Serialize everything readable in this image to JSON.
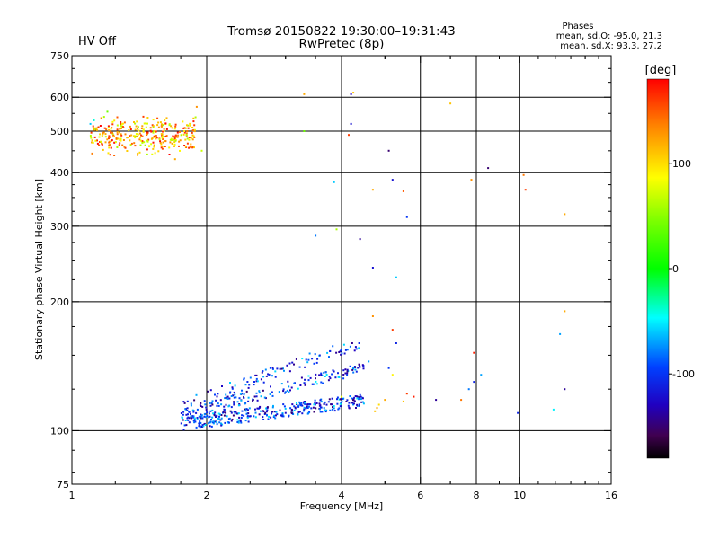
{
  "chart_data": {
    "type": "scatter",
    "title": "Tromsø 20150822 19:30:00–19:31:43",
    "subtitle": "RwPretec (8p)",
    "status": "HV Off",
    "status_color": "#e02020",
    "stats": {
      "heading": "Phases",
      "line_o": "mean, sd,O: -95.0, 21.3",
      "line_x": "mean, sd,X:  93.3, 27.2"
    },
    "xlabel": "Frequency [MHz]",
    "ylabel": "Stationary phase Virtual Height [km]",
    "xscale": "log",
    "yscale": "log",
    "xlim": [
      1,
      16
    ],
    "ylim": [
      75,
      750
    ],
    "xticks": [
      1,
      2,
      4,
      6,
      8,
      10,
      16
    ],
    "xtick_labels": [
      "1",
      "2",
      "4",
      "6",
      "8",
      "10",
      "16"
    ],
    "yticks": [
      75,
      100,
      200,
      300,
      400,
      500,
      600,
      750
    ],
    "ytick_labels": [
      "75",
      "100",
      "200",
      "300",
      "400",
      "500",
      "600",
      "750"
    ],
    "grid_x": [
      2,
      4,
      6,
      8,
      10
    ],
    "grid_y": [
      100,
      200,
      300,
      400,
      500,
      600
    ],
    "grid": true,
    "colorbar": {
      "label": "[deg]",
      "range": [
        -180,
        180
      ],
      "ticks": [
        100,
        0,
        -100
      ],
      "tick_labels": [
        "100",
        "0",
        "-100"
      ]
    },
    "clusters": [
      {
        "x_range": [
          1.1,
          1.9
        ],
        "y_range": [
          420,
          570
        ],
        "count": 320,
        "value_range": [
          60,
          180
        ]
      },
      {
        "x_range": [
          1.75,
          4.5
        ],
        "y_range": [
          97,
          160
        ],
        "count": 620,
        "value_range": [
          -150,
          -70
        ]
      }
    ],
    "series": [
      {
        "values": [
          {
            "x": 3.3,
            "y": 610,
            "v": 120
          },
          {
            "x": 4.2,
            "y": 610,
            "v": -130
          },
          {
            "x": 4.25,
            "y": 615,
            "v": 110
          },
          {
            "x": 3.3,
            "y": 500,
            "v": 40
          },
          {
            "x": 4.2,
            "y": 520,
            "v": -120
          },
          {
            "x": 4.15,
            "y": 490,
            "v": 160
          },
          {
            "x": 5.1,
            "y": 450,
            "v": -150
          },
          {
            "x": 5.2,
            "y": 385,
            "v": -120
          },
          {
            "x": 3.85,
            "y": 380,
            "v": -60
          },
          {
            "x": 4.7,
            "y": 365,
            "v": 120
          },
          {
            "x": 5.5,
            "y": 362,
            "v": 150
          },
          {
            "x": 5.6,
            "y": 315,
            "v": -100
          },
          {
            "x": 7.0,
            "y": 580,
            "v": 110
          },
          {
            "x": 7.8,
            "y": 385,
            "v": 130
          },
          {
            "x": 8.5,
            "y": 410,
            "v": -150
          },
          {
            "x": 10.3,
            "y": 365,
            "v": 160
          },
          {
            "x": 10.2,
            "y": 395,
            "v": 140
          },
          {
            "x": 12.6,
            "y": 320,
            "v": 120
          },
          {
            "x": 3.9,
            "y": 295,
            "v": 60
          },
          {
            "x": 3.5,
            "y": 285,
            "v": -80
          },
          {
            "x": 4.4,
            "y": 280,
            "v": -140
          },
          {
            "x": 4.7,
            "y": 240,
            "v": -120
          },
          {
            "x": 5.3,
            "y": 228,
            "v": -60
          },
          {
            "x": 4.7,
            "y": 185,
            "v": 130
          },
          {
            "x": 5.2,
            "y": 172,
            "v": 160
          },
          {
            "x": 12.6,
            "y": 190,
            "v": 120
          },
          {
            "x": 12.3,
            "y": 168,
            "v": -70
          },
          {
            "x": 5.3,
            "y": 160,
            "v": -110
          },
          {
            "x": 5.2,
            "y": 135,
            "v": 90
          },
          {
            "x": 4.6,
            "y": 145,
            "v": -70
          },
          {
            "x": 5.1,
            "y": 140,
            "v": -100
          },
          {
            "x": 5.6,
            "y": 122,
            "v": 160
          },
          {
            "x": 5.8,
            "y": 120,
            "v": 170
          },
          {
            "x": 5.0,
            "y": 118,
            "v": 120
          },
          {
            "x": 5.5,
            "y": 117,
            "v": 110
          },
          {
            "x": 6.5,
            "y": 118,
            "v": -140
          },
          {
            "x": 7.7,
            "y": 125,
            "v": -80
          },
          {
            "x": 7.9,
            "y": 130,
            "v": -110
          },
          {
            "x": 8.2,
            "y": 135,
            "v": -70
          },
          {
            "x": 7.9,
            "y": 152,
            "v": 170
          },
          {
            "x": 7.4,
            "y": 118,
            "v": 140
          },
          {
            "x": 9.9,
            "y": 110,
            "v": -110
          },
          {
            "x": 11.9,
            "y": 112,
            "v": -50
          },
          {
            "x": 12.6,
            "y": 125,
            "v": -140
          },
          {
            "x": 4.0,
            "y": 120,
            "v": 80
          },
          {
            "x": 4.8,
            "y": 113,
            "v": 120
          },
          {
            "x": 4.85,
            "y": 115,
            "v": 100
          },
          {
            "x": 4.75,
            "y": 111,
            "v": 110
          },
          {
            "x": 1.18,
            "y": 540,
            "v": 60
          },
          {
            "x": 1.2,
            "y": 555,
            "v": 40
          },
          {
            "x": 1.1,
            "y": 520,
            "v": -60
          },
          {
            "x": 1.12,
            "y": 530,
            "v": -40
          },
          {
            "x": 1.9,
            "y": 570,
            "v": 130
          },
          {
            "x": 1.95,
            "y": 450,
            "v": 70
          },
          {
            "x": 1.7,
            "y": 430,
            "v": 120
          }
        ]
      }
    ]
  }
}
